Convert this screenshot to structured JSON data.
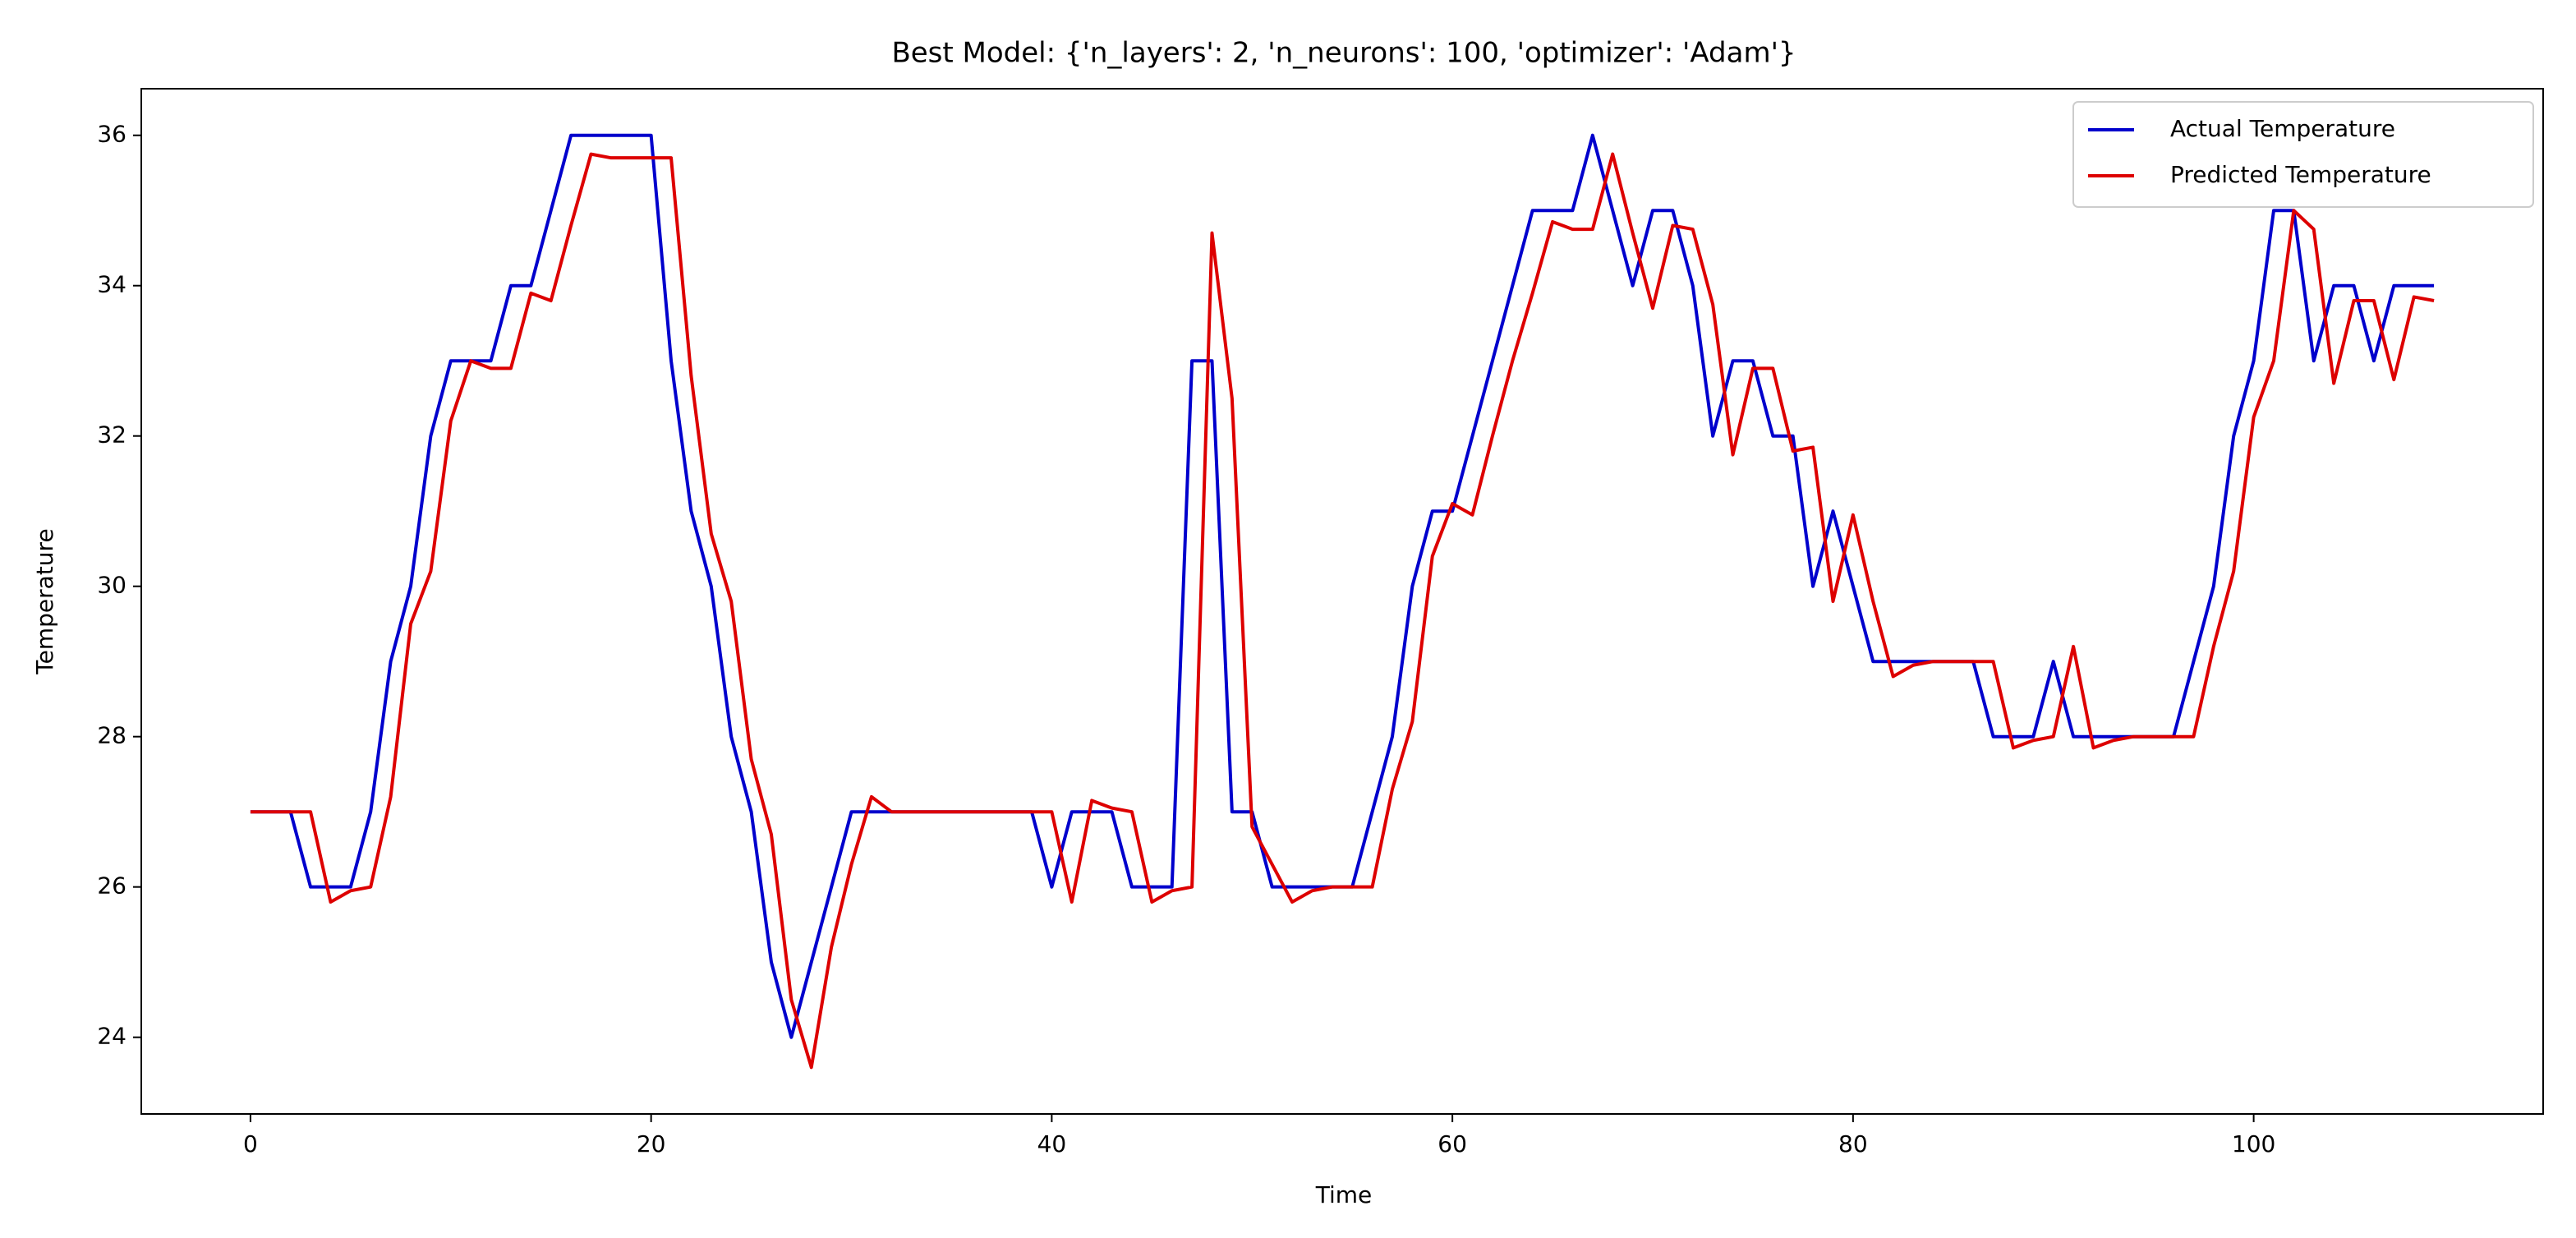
{
  "chart_data": {
    "type": "line",
    "title": "Best Model: {'n_layers': 2, 'n_neurons': 100, 'optimizer': 'Adam'}",
    "x_label": "Time",
    "y_label": "Temperature",
    "x": [
      0,
      1,
      2,
      3,
      4,
      5,
      6,
      7,
      8,
      9,
      10,
      11,
      12,
      13,
      14,
      15,
      16,
      17,
      18,
      19,
      20,
      21,
      22,
      23,
      24,
      25,
      26,
      27,
      28,
      29,
      30,
      31,
      32,
      33,
      34,
      35,
      36,
      37,
      38,
      39,
      40,
      41,
      42,
      43,
      44,
      45,
      46,
      47,
      48,
      49,
      50,
      51,
      52,
      53,
      54,
      55,
      56,
      57,
      58,
      59,
      60,
      61,
      62,
      63,
      64,
      65,
      66,
      67,
      68,
      69,
      70,
      71,
      72,
      73,
      74,
      75,
      76,
      77,
      78,
      79,
      80,
      81,
      82,
      83,
      84,
      85,
      86,
      87,
      88,
      89,
      90,
      91,
      92,
      93,
      94,
      95,
      96,
      97,
      98,
      99,
      100,
      101,
      102,
      103,
      104,
      105,
      106,
      107,
      108,
      109
    ],
    "series": [
      {
        "name": "Actual Temperature",
        "color": "#0000cc",
        "values": [
          27,
          27,
          27,
          26,
          26,
          26,
          27,
          29,
          30,
          32,
          33,
          33,
          33,
          34,
          34,
          35,
          36,
          36,
          36,
          36,
          36,
          33,
          31,
          30,
          28,
          27,
          25,
          24,
          25,
          26,
          27,
          27,
          27,
          27,
          27,
          27,
          27,
          27,
          27,
          27,
          26,
          27,
          27,
          27,
          26,
          26,
          26,
          33,
          33,
          27,
          27,
          26,
          26,
          26,
          26,
          26,
          27,
          28,
          30,
          31,
          31,
          32,
          33,
          34,
          35,
          35,
          35,
          36,
          35,
          34,
          35,
          35,
          34,
          32,
          33,
          33,
          32,
          32,
          30,
          31,
          30,
          29,
          29,
          29,
          29,
          29,
          29,
          28,
          28,
          28,
          29,
          28,
          28,
          28,
          28,
          28,
          28,
          29,
          30,
          32,
          33,
          35,
          35,
          33,
          34,
          34,
          33,
          34,
          34,
          34
        ]
      },
      {
        "name": "Predicted Temperature",
        "color": "#dd0000",
        "values": [
          27,
          27,
          27,
          27,
          25.8,
          25.95,
          26,
          27.2,
          29.5,
          30.2,
          32.2,
          33,
          32.9,
          32.9,
          33.9,
          33.8,
          34.8,
          35.75,
          35.7,
          35.7,
          35.7,
          35.7,
          32.8,
          30.7,
          29.8,
          27.7,
          26.7,
          24.5,
          23.6,
          25.2,
          26.3,
          27.2,
          27,
          27,
          27,
          27,
          27,
          27,
          27,
          27,
          27,
          25.8,
          27.15,
          27.05,
          27,
          25.8,
          25.95,
          26,
          34.7,
          32.5,
          26.8,
          26.3,
          25.8,
          25.95,
          26,
          26,
          26,
          27.3,
          28.2,
          30.4,
          31.1,
          30.95,
          32,
          33,
          33.9,
          34.85,
          34.75,
          34.75,
          35.75,
          34.7,
          33.7,
          34.8,
          34.75,
          33.75,
          31.75,
          32.9,
          32.9,
          31.8,
          31.85,
          29.8,
          30.95,
          29.8,
          28.8,
          28.95,
          29,
          29,
          29,
          29,
          27.85,
          27.95,
          28,
          29.2,
          27.85,
          27.95,
          28,
          28,
          28,
          28,
          29.2,
          30.2,
          32.25,
          33,
          35,
          34.75,
          32.7,
          33.8,
          33.8,
          32.75,
          33.85,
          33.8
        ]
      }
    ],
    "xlim": [
      -5.45,
      114.45
    ],
    "xticks": [
      0,
      20,
      40,
      60,
      80,
      100
    ],
    "ylim": [
      22.98,
      36.62
    ],
    "yticks": [
      24,
      26,
      28,
      30,
      32,
      34,
      36
    ],
    "legend": "upper right"
  }
}
